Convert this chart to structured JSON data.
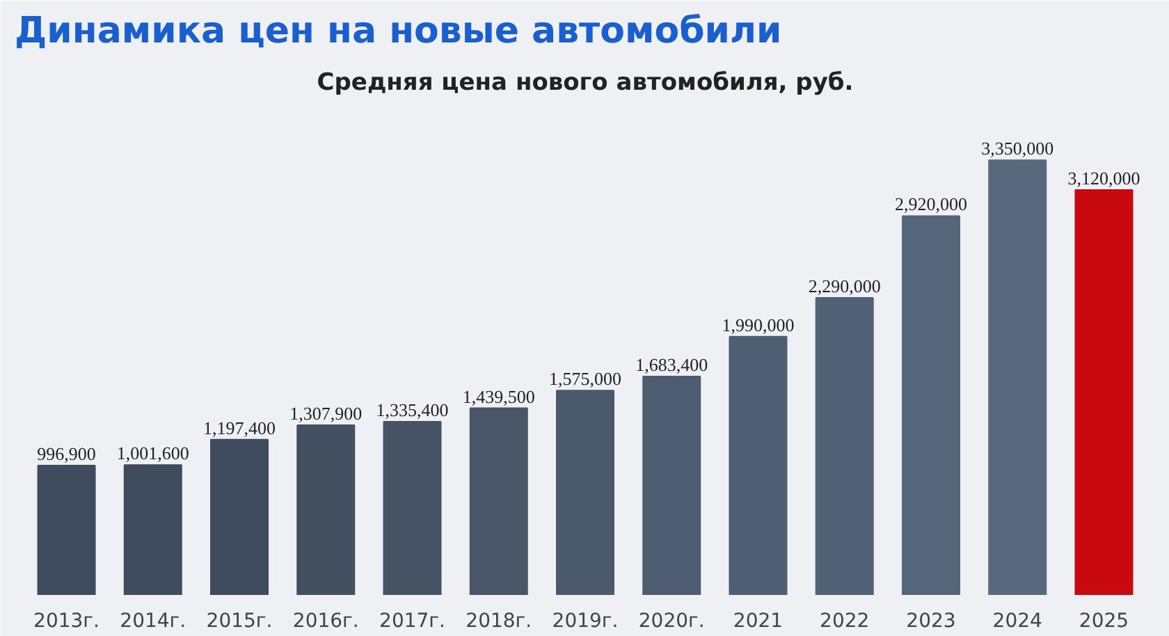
{
  "chart_data": {
    "type": "bar",
    "title": "Динамика цен на новые автомобили",
    "subtitle": "Средняя цена нового автомобиля, руб.",
    "categories": [
      "2013г.",
      "2014г.",
      "2015г.",
      "2016г.",
      "2017г.",
      "2018г.",
      "2019г.",
      "2020г.",
      "2021",
      "2022",
      "2023",
      "2024",
      "2025"
    ],
    "values": [
      996900,
      1001600,
      1197400,
      1307900,
      1335400,
      1439500,
      1575000,
      1683400,
      1990000,
      2290000,
      2920000,
      3350000,
      3120000
    ],
    "colors": [
      "#3f4c5e",
      "#3f4c5e",
      "#3f4c5e",
      "#42505f",
      "#455365",
      "#485668",
      "#4a596c",
      "#4d5c70",
      "#4f5f73",
      "#526276",
      "#55657a",
      "#58687d",
      "#c80a10"
    ],
    "value_labels": [
      "996,900",
      "1,001,600",
      "1,197,400",
      "1,307,900",
      "1,335,400",
      "1,439,500",
      "1,575,000",
      "1,683,400",
      "1,990,000",
      "2,290,000",
      "2,920,000",
      "3,350,000",
      "3,120,000"
    ],
    "grid": false
  }
}
